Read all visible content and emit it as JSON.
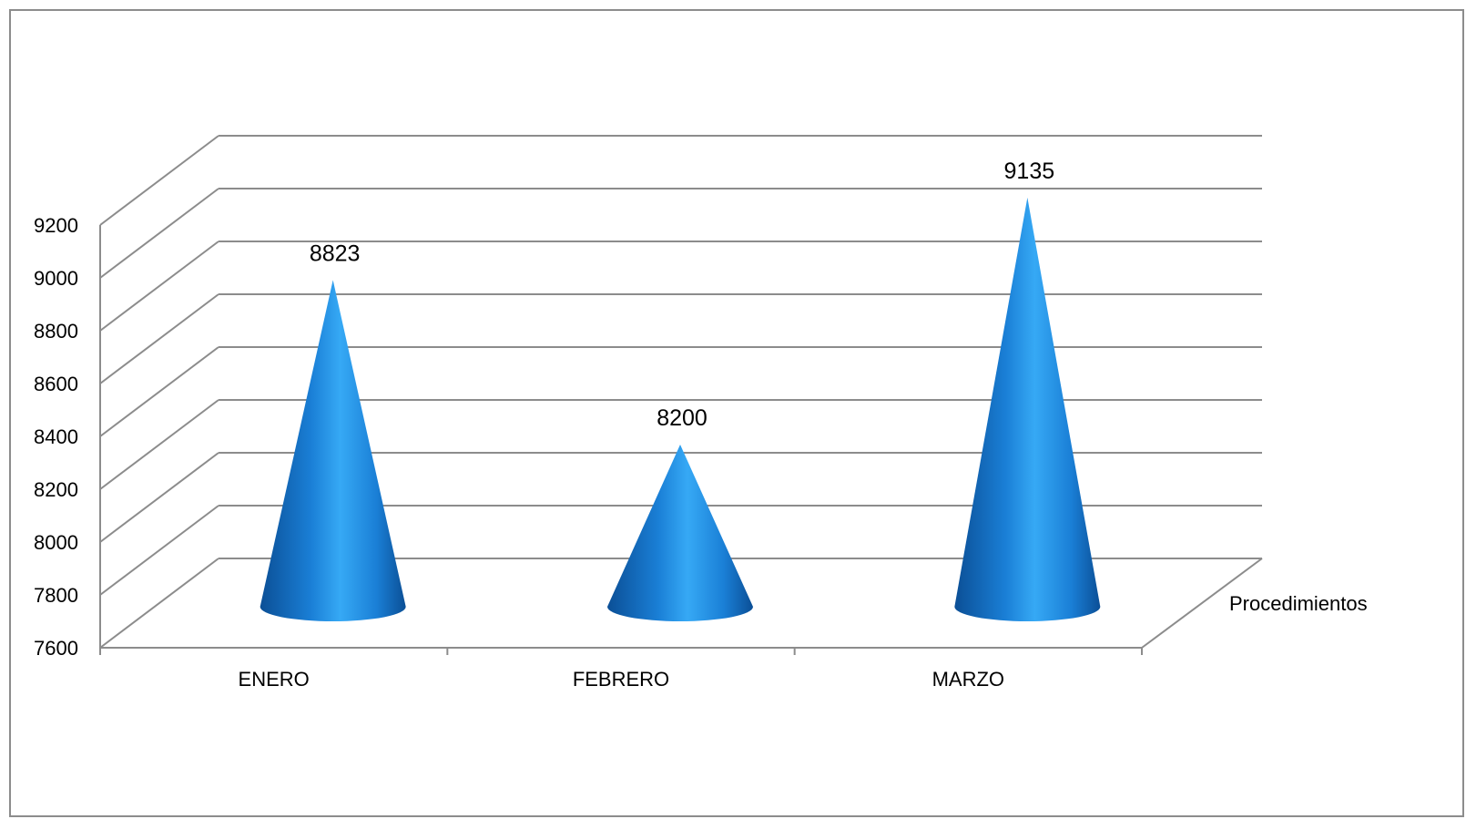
{
  "chart_data": {
    "type": "bar",
    "style": "3d-cone",
    "categories": [
      "ENERO",
      "FEBRERO",
      "MARZO"
    ],
    "series": [
      {
        "name": "Procedimientos",
        "values": [
          8823,
          8200,
          9135
        ]
      }
    ],
    "data_labels": [
      "8823",
      "8200",
      "9135"
    ],
    "ylim": [
      7600,
      9200
    ],
    "yticks": [
      "7600",
      "7800",
      "8000",
      "8200",
      "8400",
      "8600",
      "8800",
      "9000",
      "9200"
    ],
    "grid": true,
    "colors": {
      "cone": "#1a7fd6",
      "cone_light": "#36a9f5",
      "cone_dark": "#0b4f96",
      "grid": "#8c8c8c"
    }
  }
}
